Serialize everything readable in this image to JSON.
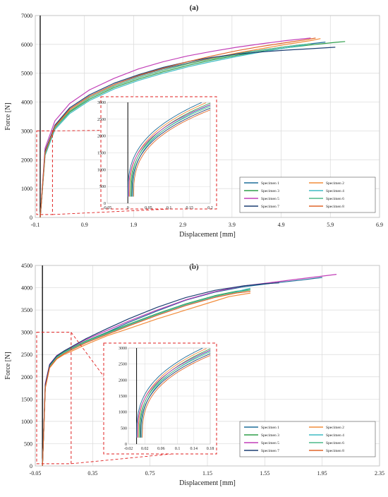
{
  "colors": {
    "Specimen 1": "#1f6e9a",
    "Specimen 2": "#f28d3c",
    "Specimen 3": "#2e9e4a",
    "Specimen 4": "#3fbcc3",
    "Specimen 5": "#c23fb8",
    "Specimen 6": "#4db88a",
    "Specimen 7": "#1d3f73",
    "Specimen 8": "#e0662a",
    "zoom_box": "#e02020",
    "grid": "#d9d9d9"
  },
  "chart_data": [
    {
      "type": "line",
      "panel_label": "(a)",
      "xlabel": "Displacement [mm]",
      "ylabel": "Force [N]",
      "xlim": [
        -0.1,
        6.9
      ],
      "ylim": [
        0,
        7000
      ],
      "xticks": [
        "-0.1",
        "0.9",
        "1.9",
        "2.9",
        "3.9",
        "4.9",
        "5.9",
        "6.9"
      ],
      "yticks": [
        "0",
        "1000",
        "2000",
        "3000",
        "4000",
        "5000",
        "6000",
        "7000"
      ],
      "grid": true,
      "legend_position": "lower-right",
      "legend": [
        "Specimen 1",
        "Specimen 2",
        "Specimen 3",
        "Specimen 4",
        "Specimen 5",
        "Specimen 6",
        "Specimen 7",
        "Specimen 8"
      ],
      "series": [
        {
          "name": "Specimen 1",
          "x": [
            0,
            0.1,
            0.3,
            0.6,
            1.0,
            1.5,
            2.0,
            2.5,
            3.0,
            3.5,
            4.0,
            4.5,
            5.0,
            5.5,
            5.8
          ],
          "y": [
            0,
            2200,
            3150,
            3750,
            4200,
            4600,
            4900,
            5150,
            5350,
            5530,
            5680,
            5800,
            5920,
            6020,
            6080
          ]
        },
        {
          "name": "Specimen 2",
          "x": [
            0,
            0.1,
            0.3,
            0.6,
            1.0,
            1.5,
            2.0,
            2.5,
            3.0,
            3.5,
            4.0,
            4.5,
            5.0,
            5.5,
            5.7
          ],
          "y": [
            0,
            2250,
            3150,
            3700,
            4150,
            4550,
            4850,
            5100,
            5330,
            5520,
            5700,
            5850,
            6000,
            6130,
            6200
          ]
        },
        {
          "name": "Specimen 3",
          "x": [
            0,
            0.1,
            0.3,
            0.6,
            1.0,
            1.5,
            2.0,
            2.5,
            3.0,
            3.5,
            4.0,
            4.5,
            5.0,
            5.5,
            6.0,
            6.2
          ],
          "y": [
            0,
            2200,
            3100,
            3650,
            4100,
            4500,
            4800,
            5050,
            5270,
            5460,
            5620,
            5760,
            5880,
            5980,
            6070,
            6100
          ]
        },
        {
          "name": "Specimen 4",
          "x": [
            0,
            0.1,
            0.3,
            0.6,
            1.0,
            1.5,
            2.0,
            2.5,
            3.0,
            3.5,
            4.0,
            4.5,
            5.0,
            5.4
          ],
          "y": [
            0,
            2150,
            3050,
            3600,
            4050,
            4450,
            4750,
            5000,
            5220,
            5410,
            5580,
            5740,
            5880,
            5980
          ]
        },
        {
          "name": "Specimen 5",
          "x": [
            0,
            0.1,
            0.3,
            0.6,
            1.0,
            1.5,
            2.0,
            2.5,
            3.0,
            3.5,
            4.0,
            4.5,
            5.0,
            5.5
          ],
          "y": [
            0,
            2400,
            3350,
            3950,
            4420,
            4820,
            5150,
            5400,
            5600,
            5760,
            5900,
            6020,
            6130,
            6220
          ]
        },
        {
          "name": "Specimen 6",
          "x": [
            0,
            0.1,
            0.3,
            0.6,
            1.0,
            1.5,
            2.0,
            2.5,
            3.0,
            3.5,
            4.0,
            4.5,
            5.0,
            5.5
          ],
          "y": [
            0,
            2200,
            3100,
            3680,
            4150,
            4550,
            4850,
            5100,
            5320,
            5500,
            5660,
            5800,
            5920,
            6020
          ]
        },
        {
          "name": "Specimen 7",
          "x": [
            0,
            0.1,
            0.3,
            0.6,
            1.0,
            1.5,
            2.0,
            2.5,
            3.0,
            3.5,
            4.0,
            4.5,
            5.0,
            5.5,
            6.0
          ],
          "y": [
            0,
            2300,
            3200,
            3800,
            4250,
            4650,
            4950,
            5200,
            5400,
            5550,
            5660,
            5740,
            5800,
            5850,
            5900
          ]
        },
        {
          "name": "Specimen 8",
          "x": [
            0,
            0.1,
            0.3,
            0.6,
            1.0,
            1.5,
            2.0,
            2.5,
            3.0,
            3.5,
            4.0,
            4.5,
            5.0,
            5.4,
            5.6
          ],
          "y": [
            0,
            2250,
            3150,
            3750,
            4200,
            4600,
            4920,
            5170,
            5400,
            5600,
            5780,
            5930,
            6060,
            6160,
            6220
          ]
        }
      ],
      "inset": {
        "xlim": [
          -0.05,
          0.2
        ],
        "ylim": [
          0,
          3000
        ],
        "xticks": [
          "-0.05",
          "0",
          "0.05",
          "0.1",
          "0.15",
          "0.2"
        ],
        "yticks": [
          "0",
          "500",
          "1000",
          "1500",
          "2000",
          "2500",
          "3000"
        ],
        "source_region": {
          "x": [
            -0.1,
            0.25
          ],
          "y": [
            100,
            3000
          ]
        }
      }
    },
    {
      "type": "line",
      "panel_label": "(b)",
      "xlabel": "Displacement [mm]",
      "ylabel": "Force [N]",
      "xlim": [
        -0.05,
        2.35
      ],
      "ylim": [
        0,
        4500
      ],
      "xticks": [
        "-0.05",
        "0.35",
        "0.75",
        "1.15",
        "1.55",
        "1.95",
        "2.35"
      ],
      "yticks": [
        "0",
        "500",
        "1000",
        "1500",
        "2000",
        "2500",
        "3000",
        "3500",
        "4000",
        "4500"
      ],
      "grid": true,
      "legend_position": "lower-right",
      "legend": [
        "Specimen 1",
        "Specimen 2",
        "Specimen 3",
        "Specimen 4",
        "Specimen 5",
        "Specimen 6",
        "Specimen 7",
        "Specimen 8"
      ],
      "series": [
        {
          "name": "Specimen 1",
          "x": [
            0,
            0.02,
            0.05,
            0.1,
            0.15,
            0.2,
            0.3,
            0.45,
            0.6,
            0.8,
            1.0,
            1.2,
            1.4,
            1.6,
            1.8,
            1.95
          ],
          "y": [
            0,
            1800,
            2250,
            2450,
            2560,
            2640,
            2800,
            3000,
            3220,
            3480,
            3720,
            3900,
            4020,
            4100,
            4170,
            4230
          ]
        },
        {
          "name": "Specimen 2",
          "x": [
            0,
            0.02,
            0.05,
            0.1,
            0.15,
            0.2,
            0.3,
            0.45,
            0.6,
            0.8,
            1.0,
            1.2,
            1.3,
            1.45
          ],
          "y": [
            0,
            1750,
            2200,
            2400,
            2500,
            2570,
            2720,
            2920,
            3080,
            3300,
            3500,
            3700,
            3800,
            3880
          ]
        },
        {
          "name": "Specimen 3",
          "x": [
            0,
            0.02,
            0.05,
            0.1,
            0.15,
            0.2,
            0.3,
            0.45,
            0.6,
            0.8,
            1.0,
            1.2,
            1.35,
            1.45
          ],
          "y": [
            0,
            1800,
            2250,
            2450,
            2560,
            2640,
            2800,
            2990,
            3180,
            3420,
            3640,
            3820,
            3920,
            3960
          ]
        },
        {
          "name": "Specimen 4",
          "x": [
            0,
            0.02,
            0.05,
            0.1,
            0.15,
            0.2,
            0.3,
            0.45,
            0.6,
            0.8,
            1.0,
            1.2,
            1.35,
            1.45
          ],
          "y": [
            0,
            1780,
            2230,
            2430,
            2540,
            2620,
            2780,
            2970,
            3160,
            3400,
            3620,
            3800,
            3910,
            3990
          ]
        },
        {
          "name": "Specimen 5",
          "x": [
            0,
            0.02,
            0.05,
            0.1,
            0.15,
            0.2,
            0.3,
            0.45,
            0.6,
            0.8,
            1.0,
            1.2,
            1.4,
            1.6,
            1.8,
            1.95,
            2.05
          ],
          "y": [
            0,
            1850,
            2280,
            2480,
            2580,
            2660,
            2830,
            3040,
            3250,
            3500,
            3730,
            3910,
            4040,
            4120,
            4200,
            4260,
            4300
          ]
        },
        {
          "name": "Specimen 6",
          "x": [
            0,
            0.02,
            0.05,
            0.1,
            0.15,
            0.2,
            0.3,
            0.45,
            0.6,
            0.8,
            1.0,
            1.2,
            1.35,
            1.45
          ],
          "y": [
            0,
            1790,
            2240,
            2440,
            2550,
            2630,
            2790,
            2980,
            3170,
            3410,
            3630,
            3810,
            3900,
            3950
          ]
        },
        {
          "name": "Specimen 7",
          "x": [
            0,
            0.02,
            0.05,
            0.1,
            0.15,
            0.2,
            0.3,
            0.45,
            0.6,
            0.8,
            1.0,
            1.2,
            1.4,
            1.55,
            1.65
          ],
          "y": [
            0,
            1820,
            2270,
            2470,
            2580,
            2670,
            2850,
            3080,
            3300,
            3560,
            3780,
            3940,
            4040,
            4090,
            4110
          ]
        },
        {
          "name": "Specimen 8",
          "x": [
            0,
            0.02,
            0.05,
            0.1,
            0.15,
            0.2,
            0.3,
            0.45,
            0.6,
            0.8,
            1.0,
            1.2,
            1.35,
            1.45
          ],
          "y": [
            0,
            1760,
            2210,
            2410,
            2520,
            2600,
            2760,
            2950,
            3140,
            3380,
            3600,
            3780,
            3880,
            3920
          ]
        }
      ],
      "inset": {
        "xlim": [
          -0.02,
          0.18
        ],
        "ylim": [
          0,
          3000
        ],
        "xticks": [
          "-0.02",
          "0.02",
          "0.06",
          "0.1",
          "0.14",
          "0.18"
        ],
        "yticks": [
          "0",
          "500",
          "1000",
          "1500",
          "2000",
          "2500",
          "3000"
        ],
        "source_region": {
          "x": [
            -0.05,
            0.2
          ],
          "y": [
            50,
            3000
          ]
        }
      }
    }
  ]
}
